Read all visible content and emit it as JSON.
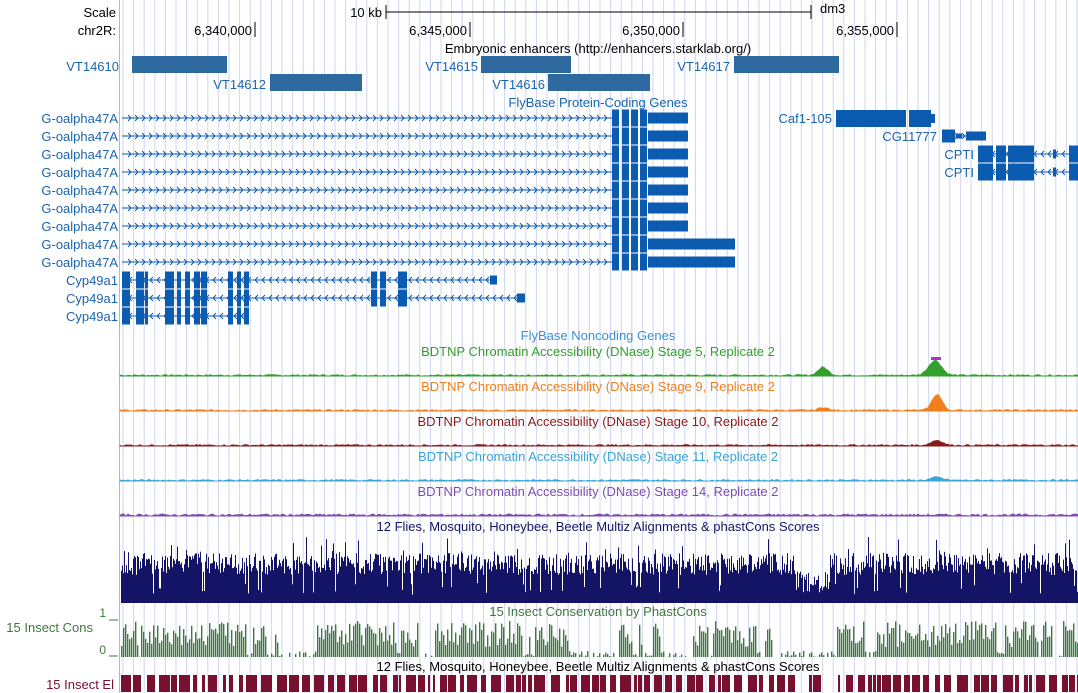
{
  "scale": {
    "label": "Scale",
    "bar_label": "10 kb",
    "assembly": "dm3"
  },
  "chrom": {
    "label": "chr2R:",
    "ticks": [
      "6,340,000",
      "6,345,000",
      "6,350,000",
      "6,355,000"
    ]
  },
  "tracks": {
    "enhancers": {
      "title": "Embryonic enhancers (http://enhancers.starklab.org/)",
      "items": [
        "VT14610",
        "VT14612",
        "VT14615",
        "VT14616",
        "VT14617"
      ]
    },
    "flybase_coding": {
      "title": "FlyBase Protein-Coding Genes",
      "goalpha_label": "G-oalpha47A",
      "cyp_label": "Cyp49a1",
      "caf_label": "Caf1-105",
      "cg_label": "CG11777",
      "cpti_label": "CPTI"
    },
    "flybase_noncoding": {
      "title": "FlyBase Noncoding Genes"
    },
    "dnase": [
      {
        "title": "BDTNP Chromatin Accessibility (DNase) Stage 5, Replicate 2",
        "color": "#33a02c"
      },
      {
        "title": "BDTNP Chromatin Accessibility (DNase) Stage 9, Replicate 2",
        "color": "#f07f1e"
      },
      {
        "title": "BDTNP Chromatin Accessibility (DNase) Stage 10, Replicate 2",
        "color": "#8b1a1a"
      },
      {
        "title": "BDTNP Chromatin Accessibility (DNase) Stage 11, Replicate 2",
        "color": "#3aa4d4"
      },
      {
        "title": "BDTNP Chromatin Accessibility (DNase) Stage 14, Replicate 2",
        "color": "#7e4cb0"
      }
    ],
    "multiz": {
      "title": "12 Flies, Mosquito, Honeybee, Beetle Multiz Alignments & phastCons Scores",
      "color": "#141466"
    },
    "insect_cons": {
      "title": "15 Insect Conservation by PhastCons",
      "side_label": "15 Insect Cons",
      "max_label": "1",
      "min_label": "0",
      "color": "#3d7a3d"
    },
    "insect_el": {
      "title": "12 Flies, Mosquito, Honeybee, Beetle Multiz Alignments & phastCons Scores",
      "side_label": "15 Insect El",
      "color": "#7a1030"
    }
  },
  "colors": {
    "gene": "#0b5bb0",
    "enhancer": "#2e6aa0",
    "label": "#1a64b0",
    "grid": "#cfd6f2",
    "sidebar_line": "#ff9a9a"
  }
}
